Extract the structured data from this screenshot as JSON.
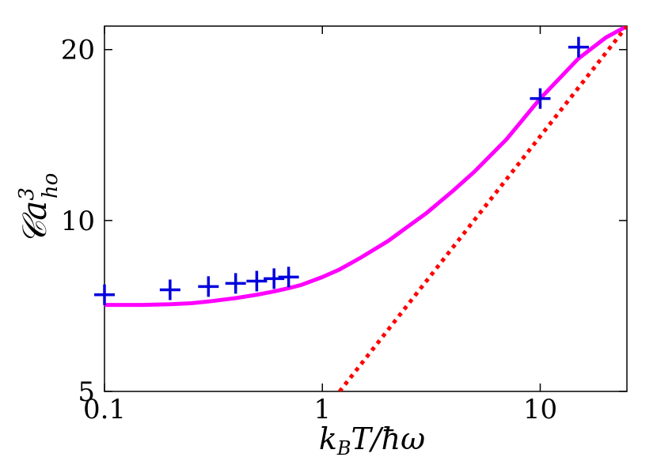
{
  "chart_data": {
    "type": "line",
    "x_scale": "log",
    "y_scale": "log",
    "xlim": [
      0.1,
      25
    ],
    "ylim": [
      5,
      22
    ],
    "xticks": [
      {
        "value": 0.1,
        "label": "0.1"
      },
      {
        "value": 1,
        "label": "1"
      },
      {
        "value": 10,
        "label": "10"
      }
    ],
    "yticks": [
      {
        "value": 5,
        "label": "5"
      },
      {
        "value": 10,
        "label": "10"
      },
      {
        "value": 20,
        "label": "20"
      }
    ],
    "xlabel": "k_BT/ħω",
    "ylabel": "𝒞a³_ho",
    "grid": false,
    "series": [
      {
        "style": "line",
        "color": "#ff00ff",
        "x": [
          0.1,
          0.15,
          0.2,
          0.25,
          0.3,
          0.4,
          0.5,
          0.6,
          0.7,
          0.8,
          1.0,
          1.2,
          1.5,
          2.0,
          3.0,
          4.0,
          5.0,
          7.0,
          10.0,
          15.0,
          20.0,
          25.0
        ],
        "y": [
          7.1,
          7.1,
          7.12,
          7.15,
          7.2,
          7.3,
          7.4,
          7.5,
          7.6,
          7.7,
          7.95,
          8.2,
          8.6,
          9.2,
          10.3,
          11.3,
          12.2,
          13.9,
          16.4,
          19.3,
          21.0,
          22.0
        ]
      },
      {
        "style": "dotted-line",
        "color": "#ff0000",
        "x": [
          1.2,
          25.0
        ],
        "y": [
          5.0,
          22.0
        ]
      },
      {
        "style": "markers-plus",
        "color": "#0000dd",
        "x": [
          0.1,
          0.2,
          0.3,
          0.4,
          0.5,
          0.6,
          0.7,
          10.0,
          15.0
        ],
        "y": [
          7.4,
          7.55,
          7.65,
          7.75,
          7.82,
          7.9,
          7.95,
          16.4,
          20.2
        ]
      }
    ]
  }
}
